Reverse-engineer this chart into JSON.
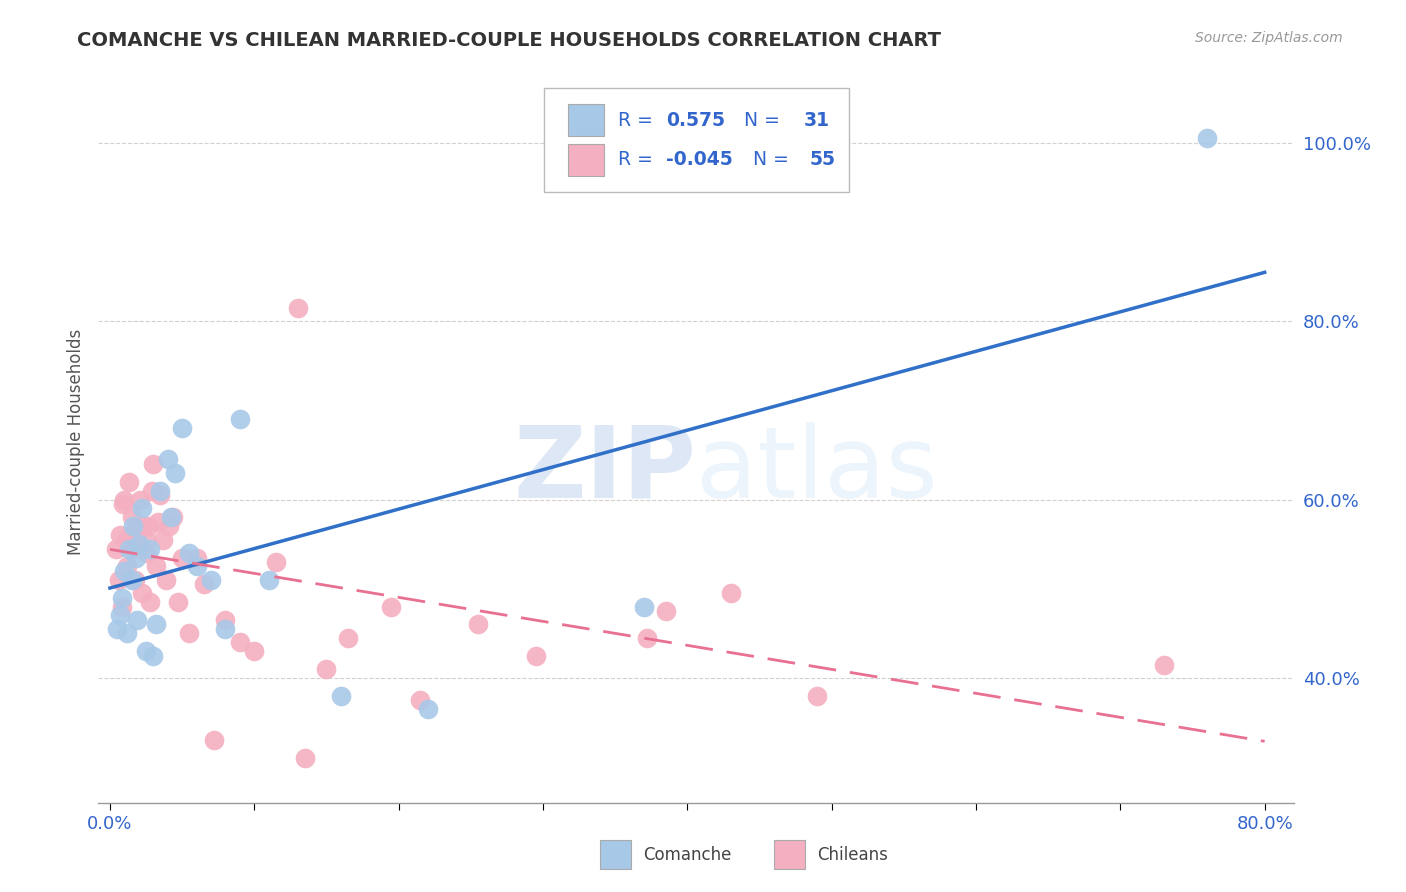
{
  "title": "COMANCHE VS CHILEAN MARRIED-COUPLE HOUSEHOLDS CORRELATION CHART",
  "source": "Source: ZipAtlas.com",
  "ylabel": "Married-couple Households",
  "legend_blue_R": "0.575",
  "legend_blue_N": "31",
  "legend_pink_R": "-0.045",
  "legend_pink_N": "55",
  "blue_color": "#a8c8e8",
  "pink_color": "#f4b0c0",
  "blue_line_color": "#3070c8",
  "pink_line_color": "#e87090",
  "legend_text_color": "#3366cc",
  "watermark_color": "#ddeeff",
  "grid_color": "#cccccc",
  "blue_scatter_x": [
    0.005,
    0.007,
    0.008,
    0.01,
    0.012,
    0.013,
    0.015,
    0.016,
    0.018,
    0.019,
    0.02,
    0.022,
    0.025,
    0.028,
    0.03,
    0.032,
    0.035,
    0.04,
    0.042,
    0.045,
    0.05,
    0.055,
    0.06,
    0.07,
    0.08,
    0.09,
    0.11,
    0.16,
    0.22,
    0.37,
    0.76
  ],
  "blue_scatter_y": [
    0.455,
    0.47,
    0.49,
    0.52,
    0.45,
    0.545,
    0.51,
    0.57,
    0.535,
    0.465,
    0.55,
    0.59,
    0.43,
    0.545,
    0.425,
    0.46,
    0.61,
    0.645,
    0.58,
    0.63,
    0.68,
    0.54,
    0.525,
    0.51,
    0.455,
    0.69,
    0.51,
    0.38,
    0.365,
    0.48,
    1.005
  ],
  "pink_scatter_x": [
    0.004,
    0.006,
    0.007,
    0.008,
    0.009,
    0.01,
    0.011,
    0.012,
    0.013,
    0.014,
    0.015,
    0.016,
    0.017,
    0.018,
    0.019,
    0.02,
    0.021,
    0.022,
    0.023,
    0.025,
    0.026,
    0.027,
    0.028,
    0.029,
    0.03,
    0.032,
    0.033,
    0.035,
    0.037,
    0.039,
    0.041,
    0.044,
    0.047,
    0.05,
    0.055,
    0.06,
    0.065,
    0.072,
    0.08,
    0.09,
    0.1,
    0.115,
    0.13,
    0.15,
    0.165,
    0.195,
    0.215,
    0.255,
    0.295,
    0.372,
    0.385,
    0.43,
    0.49,
    0.135,
    0.73
  ],
  "pink_scatter_y": [
    0.545,
    0.51,
    0.56,
    0.48,
    0.595,
    0.6,
    0.555,
    0.525,
    0.62,
    0.56,
    0.58,
    0.545,
    0.51,
    0.55,
    0.56,
    0.565,
    0.6,
    0.495,
    0.57,
    0.555,
    0.54,
    0.57,
    0.485,
    0.61,
    0.64,
    0.525,
    0.575,
    0.605,
    0.555,
    0.51,
    0.57,
    0.58,
    0.485,
    0.535,
    0.45,
    0.535,
    0.505,
    0.33,
    0.465,
    0.44,
    0.43,
    0.53,
    0.815,
    0.41,
    0.445,
    0.48,
    0.375,
    0.46,
    0.425,
    0.445,
    0.475,
    0.495,
    0.38,
    0.31,
    0.415
  ],
  "xlim_min": -0.008,
  "xlim_max": 0.82,
  "ylim_min": 0.26,
  "ylim_max": 1.07,
  "xtick_positions": [
    0.0,
    0.1,
    0.2,
    0.3,
    0.4,
    0.5,
    0.6,
    0.7,
    0.8
  ],
  "ytick_positions": [
    0.4,
    0.6,
    0.8,
    1.0
  ],
  "ytick_labels": [
    "40.0%",
    "60.0%",
    "80.0%",
    "100.0%"
  ]
}
